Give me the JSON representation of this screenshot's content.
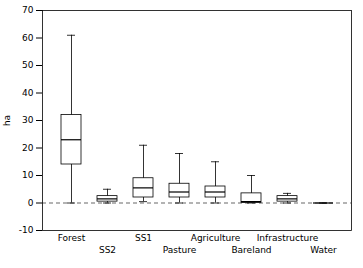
{
  "chart_data": {
    "type": "boxplot",
    "ylabel": "ha",
    "categories": [
      "Forest",
      "SS2",
      "SS1",
      "Pasture",
      "Agriculture",
      "Bareland",
      "Infrastructure",
      "Water"
    ],
    "whislo": [
      0,
      0,
      0.5,
      0,
      0,
      0,
      0,
      0
    ],
    "q1": [
      14,
      0.5,
      2,
      2,
      2,
      0,
      0.5,
      0
    ],
    "med": [
      23,
      1.5,
      5.5,
      4,
      4,
      0.5,
      1.5,
      0
    ],
    "q3": [
      32,
      2.5,
      9,
      7,
      6,
      3.5,
      2.5,
      0
    ],
    "whishi": [
      61,
      5,
      21,
      18,
      15,
      10,
      3.5,
      0
    ],
    "color": "#000000",
    "ylim": [
      -10,
      70
    ],
    "yticks": [
      -10,
      0,
      10,
      20,
      30,
      40,
      50,
      60,
      70
    ],
    "grid": false,
    "reference_lines": [
      {
        "y": 0,
        "line_style": "dashed"
      }
    ]
  }
}
